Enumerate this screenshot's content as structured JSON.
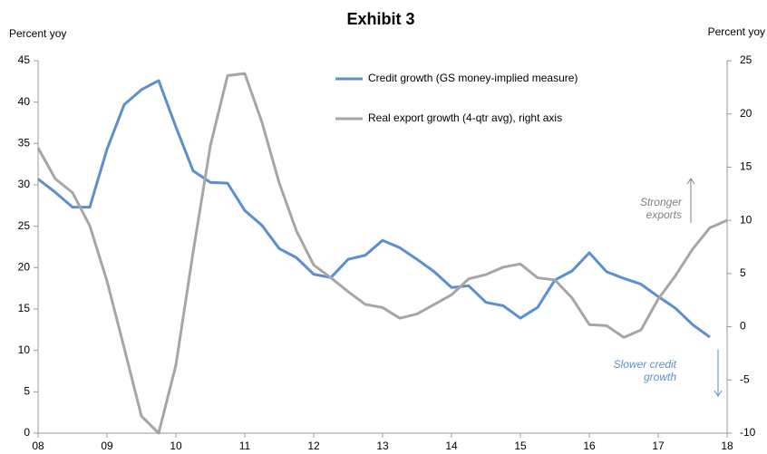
{
  "chart_data": {
    "type": "line",
    "title": "Exhibit 3",
    "y_label": "Percent yoy",
    "y2_label": "Percent yoy",
    "x": [
      8.0,
      8.25,
      8.5,
      8.75,
      9.0,
      9.25,
      9.5,
      9.75,
      10.0,
      10.25,
      10.5,
      10.75,
      11.0,
      11.25,
      11.5,
      11.75,
      12.0,
      12.25,
      12.5,
      12.75,
      13.0,
      13.25,
      13.5,
      13.75,
      14.0,
      14.25,
      14.5,
      14.75,
      15.0,
      15.25,
      15.5,
      15.75,
      16.0,
      16.25,
      16.5,
      16.75,
      17.0,
      17.25,
      17.5,
      17.75,
      18.0
    ],
    "xlim": [
      8,
      18
    ],
    "xticks": [
      {
        "value": 8,
        "label": "08"
      },
      {
        "value": 9,
        "label": "09"
      },
      10,
      11,
      12,
      13,
      14,
      15,
      16,
      17,
      18
    ],
    "ylim": [
      0,
      45
    ],
    "yticks": [
      0,
      5,
      10,
      15,
      20,
      25,
      30,
      35,
      40,
      45
    ],
    "y2lim": [
      -10,
      25
    ],
    "y2ticks": [
      -10,
      -5,
      0,
      5,
      10,
      15,
      20,
      25
    ],
    "series": [
      {
        "name": "Credit growth (GS money-implied measure)",
        "color": "#5b8fd0",
        "values": [
          30.7,
          29.1,
          27.3,
          27.3,
          34.3,
          39.7,
          41.5,
          42.6,
          37.0,
          31.7,
          30.3,
          30.2,
          26.9,
          25.1,
          22.3,
          21.2,
          19.2,
          18.8,
          21.0,
          21.5,
          23.3,
          22.4,
          21.0,
          19.5,
          17.6,
          17.8,
          15.8,
          15.4,
          13.9,
          15.2,
          18.5,
          19.6,
          21.8,
          19.5,
          18.7,
          18.0,
          16.5,
          15.1,
          13.1,
          11.6,
          null
        ]
      },
      {
        "name": "Real export growth (4-qtr avg), right axis",
        "color": "#a6a6a6",
        "axis": "y2",
        "values": [
          16.8,
          13.9,
          12.6,
          9.5,
          4.3,
          -2.0,
          -8.4,
          -10.0,
          -3.6,
          7.0,
          17.0,
          23.6,
          23.8,
          19.2,
          13.5,
          9.0,
          5.8,
          4.6,
          3.3,
          2.1,
          1.8,
          0.8,
          1.2,
          2.1,
          3.0,
          4.5,
          4.9,
          5.6,
          5.9,
          4.6,
          4.4,
          2.7,
          0.2,
          0.1,
          -1.0,
          -0.3,
          2.6,
          4.8,
          7.3,
          9.3,
          10.0
        ]
      }
    ],
    "annotations": [
      {
        "lines": [
          "Stronger",
          "exports"
        ],
        "color": "#808080"
      },
      {
        "lines": [
          "Slower credit",
          "growth"
        ],
        "color": "#5b8fd0"
      }
    ]
  }
}
